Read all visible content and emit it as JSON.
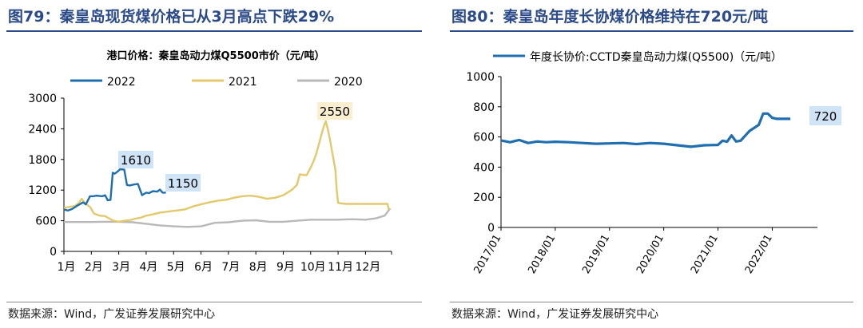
{
  "left": {
    "title": "图79：秦皇岛现货煤价格已从3月高点下跌29%",
    "source": "数据来源：Wind，广发证券发展研究中心"
  },
  "right": {
    "title": "图80：秦皇岛年度长协煤价格维持在720元/吨",
    "source": "数据来源：Wind，广发证券发展研究中心"
  },
  "chart_data": [
    {
      "type": "line",
      "title": "港口价格：秦皇岛动力煤Q5500市价（元/吨）",
      "xlabel": "",
      "ylabel": "",
      "x_categories": [
        "1月",
        "2月",
        "3月",
        "4月",
        "5月",
        "6月",
        "7月",
        "8月",
        "9月",
        "10月",
        "11月",
        "12月"
      ],
      "ylim": [
        0,
        3000
      ],
      "yticks": [
        0,
        600,
        1200,
        1800,
        2400,
        3000
      ],
      "grid": false,
      "legend": "top",
      "series": [
        {
          "name": "2022",
          "color": "#1f6fb0",
          "x": [
            1.0,
            1.15,
            1.3,
            1.5,
            1.7,
            1.8,
            1.95,
            2.05,
            2.2,
            2.4,
            2.5,
            2.6,
            2.7,
            2.78,
            2.85,
            2.95,
            3.05,
            3.2,
            3.3,
            3.4,
            3.55,
            3.7,
            3.85,
            4.0,
            4.1,
            4.25,
            4.4,
            4.5,
            4.6,
            4.72
          ],
          "values": [
            820,
            800,
            830,
            900,
            960,
            920,
            1080,
            1080,
            1090,
            1080,
            1100,
            1000,
            1010,
            1540,
            1520,
            1560,
            1610,
            1600,
            1300,
            1290,
            1310,
            1320,
            1100,
            1150,
            1140,
            1180,
            1170,
            1210,
            1150,
            1150
          ]
        },
        {
          "name": "2021",
          "color": "#e3c96b",
          "x": [
            1.0,
            1.2,
            1.4,
            1.55,
            1.65,
            1.8,
            1.95,
            2.1,
            2.3,
            2.5,
            2.8,
            3.0,
            3.2,
            3.4,
            3.6,
            3.8,
            4.0,
            4.2,
            4.5,
            4.8,
            5.1,
            5.4,
            5.7,
            6.0,
            6.3,
            6.6,
            6.9,
            7.2,
            7.5,
            7.8,
            8.1,
            8.4,
            8.7,
            9.0,
            9.3,
            9.5,
            9.6,
            9.7,
            9.85,
            10.0,
            10.1,
            10.2,
            10.3,
            10.4,
            10.48,
            10.55,
            10.62,
            10.7,
            10.8,
            10.9,
            10.95,
            11.0,
            11.1,
            11.3,
            11.6,
            11.9,
            12.2,
            12.5,
            12.8,
            12.85
          ],
          "values": [
            850,
            870,
            890,
            950,
            1030,
            930,
            870,
            740,
            700,
            690,
            600,
            580,
            600,
            610,
            640,
            660,
            700,
            720,
            760,
            780,
            800,
            820,
            880,
            920,
            960,
            990,
            1010,
            1050,
            1080,
            1090,
            1070,
            1030,
            1050,
            1100,
            1200,
            1300,
            1510,
            1500,
            1490,
            1640,
            1760,
            1900,
            2100,
            2300,
            2450,
            2550,
            2400,
            2200,
            1900,
            1600,
            1200,
            950,
            940,
            930,
            930,
            930,
            930,
            930,
            930,
            820
          ]
        },
        {
          "name": "2020",
          "color": "#b8b8b8",
          "x": [
            1.0,
            1.5,
            2.0,
            2.5,
            3.0,
            3.5,
            4.0,
            4.5,
            5.0,
            5.5,
            6.0,
            6.5,
            7.0,
            7.5,
            8.0,
            8.5,
            9.0,
            9.5,
            10.0,
            10.5,
            11.0,
            11.5,
            12.0,
            12.4,
            12.7,
            12.9
          ],
          "values": [
            575,
            575,
            575,
            580,
            580,
            570,
            540,
            510,
            490,
            480,
            490,
            560,
            570,
            600,
            610,
            580,
            580,
            600,
            620,
            620,
            620,
            630,
            620,
            650,
            700,
            840
          ]
        }
      ],
      "annotations": [
        {
          "text": "1610",
          "series": "2022",
          "x": 3.05,
          "y": 1610
        },
        {
          "text": "1150",
          "series": "2022",
          "x": 4.72,
          "y": 1150
        },
        {
          "text": "2550",
          "series": "2021",
          "x": 10.55,
          "y": 2550
        }
      ]
    },
    {
      "type": "line",
      "title": "",
      "xlabel": "",
      "ylabel": "",
      "x_ticks": [
        "2017/01",
        "2018/01",
        "2019/01",
        "2020/01",
        "2021/01",
        "2022/01"
      ],
      "ylim": [
        0,
        1000
      ],
      "yticks": [
        0,
        200,
        400,
        600,
        800,
        1000
      ],
      "grid": false,
      "legend": "top",
      "series": [
        {
          "name": "年度长协价:CCTD秦皇岛动力煤(Q5500)（元/吨）",
          "color": "#1f6fb0",
          "x": [
            "2017-01",
            "2017-03",
            "2017-05",
            "2017-07",
            "2017-09",
            "2017-11",
            "2018-01",
            "2018-04",
            "2018-07",
            "2018-10",
            "2019-01",
            "2019-04",
            "2019-07",
            "2019-10",
            "2020-01",
            "2020-04",
            "2020-07",
            "2020-10",
            "2021-01",
            "2021-02",
            "2021-03",
            "2021-04",
            "2021-05",
            "2021-06",
            "2021-08",
            "2021-10",
            "2021-11",
            "2021-12",
            "2022-01",
            "2022-02",
            "2022-05"
          ],
          "values": [
            576,
            565,
            580,
            560,
            570,
            565,
            568,
            565,
            560,
            555,
            557,
            560,
            553,
            560,
            555,
            545,
            535,
            545,
            547,
            575,
            568,
            610,
            570,
            575,
            640,
            680,
            755,
            755,
            727,
            720,
            720
          ]
        }
      ],
      "annotations": [
        {
          "text": "720",
          "series": "年度长协价:CCTD秦皇岛动力煤(Q5500)（元/吨）",
          "x": "2022-05",
          "y": 720
        }
      ]
    }
  ]
}
